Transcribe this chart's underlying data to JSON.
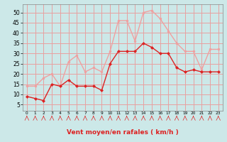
{
  "hours": [
    0,
    1,
    2,
    3,
    4,
    5,
    6,
    7,
    8,
    9,
    10,
    11,
    12,
    13,
    14,
    15,
    16,
    17,
    18,
    19,
    20,
    21,
    22,
    23
  ],
  "wind_avg": [
    9,
    8,
    7,
    15,
    14,
    17,
    14,
    14,
    14,
    12,
    25,
    31,
    31,
    31,
    35,
    33,
    30,
    30,
    23,
    21,
    22,
    21,
    21,
    21
  ],
  "wind_gust": [
    14,
    14,
    18,
    20,
    14,
    26,
    29,
    21,
    23,
    21,
    31,
    46,
    46,
    36,
    50,
    51,
    47,
    41,
    35,
    31,
    31,
    22,
    32,
    32
  ],
  "bg_color": "#cce8e8",
  "grid_color": "#e8a0a0",
  "avg_color": "#dd2222",
  "gust_color": "#f0a0a0",
  "xlabel": "Vent moyen/en rafales ( km/h )",
  "xlabel_color": "#dd2222",
  "yticks": [
    5,
    10,
    15,
    20,
    25,
    30,
    35,
    40,
    45,
    50
  ],
  "ylim": [
    2,
    54
  ],
  "xlim": [
    -0.5,
    23.5
  ]
}
